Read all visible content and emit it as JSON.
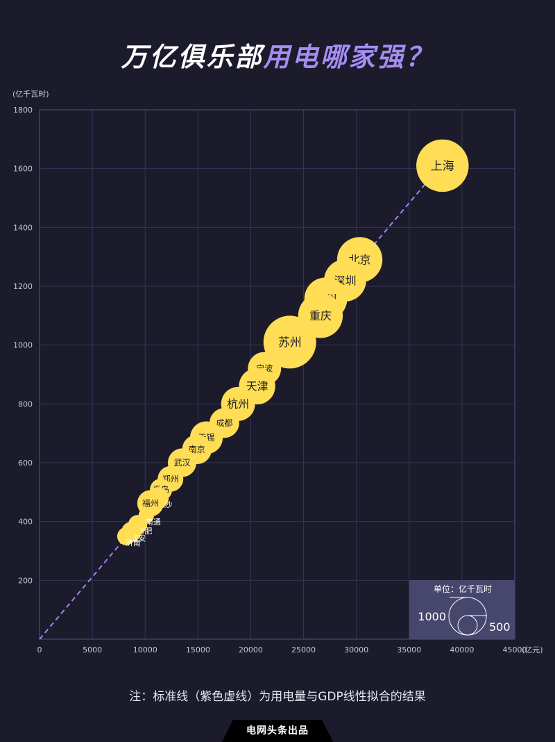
{
  "title_part1": "万亿俱乐部",
  "title_part2": "用电哪家强？",
  "note": "注：标准线（紫色虚线）为用电量与GDP线性拟合的结果",
  "footer": "电网头条出品",
  "colors": {
    "background": "#1b1b2b",
    "bubble": "#ffdd55",
    "fit_line": "#9b87f5",
    "accent": "#a48cf2",
    "legend_bg": "#47476e"
  },
  "chart_data": {
    "type": "scatter",
    "xunit": "(亿元)",
    "yunit": "(亿千瓦时)",
    "xlim": [
      0,
      45000
    ],
    "ylim": [
      0,
      1800
    ],
    "xticks": [
      0,
      5000,
      10000,
      15000,
      20000,
      25000,
      30000,
      35000,
      40000,
      45000
    ],
    "yticks": [
      200,
      400,
      600,
      800,
      1000,
      1200,
      1400,
      1600,
      1800
    ],
    "grid": true,
    "fit_line": {
      "from": [
        0,
        0
      ],
      "to": [
        38000,
        1610
      ]
    },
    "points": [
      {
        "name": "上海",
        "x": 38155,
        "y": 1610,
        "size": 1576
      },
      {
        "name": "北京",
        "x": 30320,
        "y": 1290,
        "size": 1139
      },
      {
        "name": "深圳",
        "x": 28936,
        "y": 1220,
        "size": 960
      },
      {
        "name": "广州",
        "x": 27102,
        "y": 1157,
        "size": 1000
      },
      {
        "name": "重庆",
        "x": 26600,
        "y": 1100,
        "size": 1100
      },
      {
        "name": "苏州",
        "x": 23700,
        "y": 1010,
        "size": 1600
      },
      {
        "name": "宁波",
        "x": 21300,
        "y": 920,
        "size": 550
      },
      {
        "name": "天津",
        "x": 20600,
        "y": 860,
        "size": 680
      },
      {
        "name": "杭州",
        "x": 18800,
        "y": 800,
        "size": 580
      },
      {
        "name": "成都",
        "x": 17500,
        "y": 735,
        "size": 420
      },
      {
        "name": "无锡",
        "x": 15800,
        "y": 685,
        "size": 530
      },
      {
        "name": "南京",
        "x": 14900,
        "y": 645,
        "size": 410
      },
      {
        "name": "武汉",
        "x": 13500,
        "y": 600,
        "size": 380
      },
      {
        "name": "郑州",
        "x": 12400,
        "y": 545,
        "size": 290
      },
      {
        "name": "青岛",
        "x": 11500,
        "y": 508,
        "size": 200
      },
      {
        "name": "长沙",
        "x": 11200,
        "y": 480,
        "size": 190
      },
      {
        "name": "福州",
        "x": 10500,
        "y": 462,
        "size": 310
      },
      {
        "name": "南通",
        "x": 10100,
        "y": 420,
        "size": 70
      },
      {
        "name": "合肥",
        "x": 9300,
        "y": 390,
        "size": 130
      },
      {
        "name": "西安",
        "x": 8700,
        "y": 365,
        "size": 150
      },
      {
        "name": "济南",
        "x": 8200,
        "y": 350,
        "size": 110
      }
    ],
    "legend": {
      "title": "单位：亿千瓦时",
      "big": "1000",
      "small": "500"
    }
  }
}
